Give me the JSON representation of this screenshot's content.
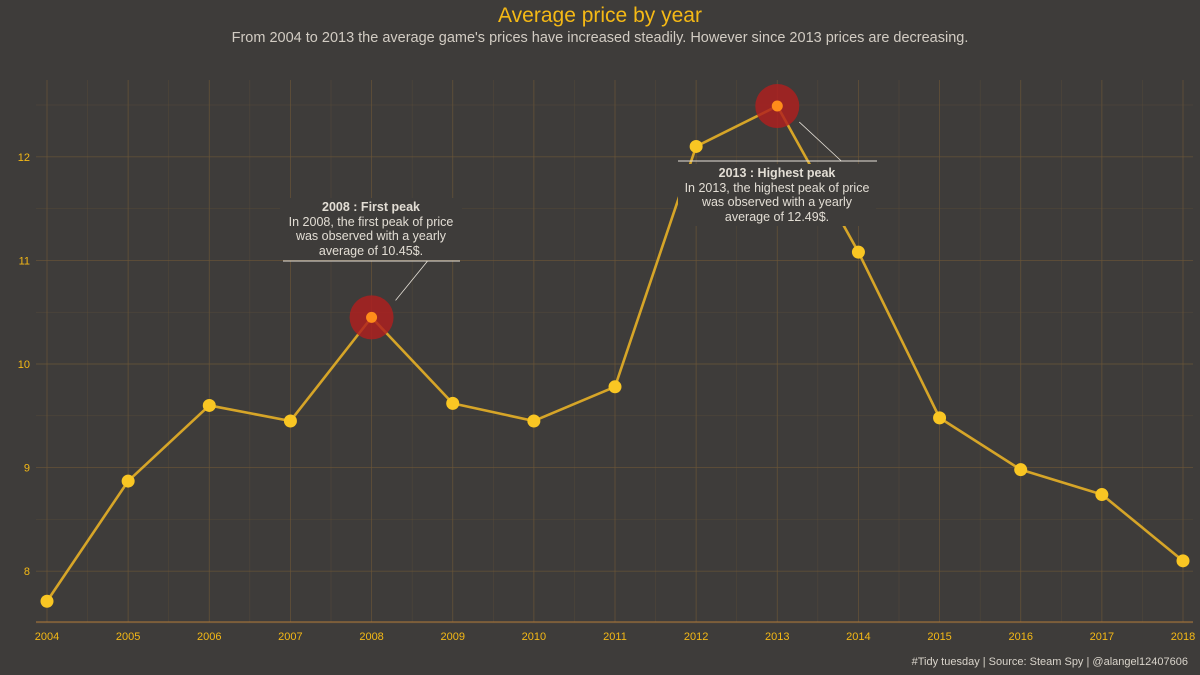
{
  "title": "Average price by year",
  "subtitle": "From 2004 to 2013 the average game's prices have increased steadily. However since 2013 prices are decreasing.",
  "caption": "#Tidy tuesday | Source: Steam Spy | @alangel12407606",
  "colors": {
    "background": "#3e3c3a",
    "line": "#d6a528",
    "point": "#f9c623",
    "highlight": "#ff8c1a",
    "halo": "#b01f1f",
    "grid": "#6b5638",
    "axis_text": "#f5b915"
  },
  "annotations": [
    {
      "year": 2008,
      "title": "2008 : First peak",
      "text": "In 2008, the first peak of price was observed with a yearly average of 10.45$."
    },
    {
      "year": 2013,
      "title": "2013 : Highest peak",
      "text": "In 2013, the highest peak of price was observed with a yearly average of 12.49$."
    }
  ],
  "chart_data": {
    "type": "line",
    "title": "Average price by year",
    "xlabel": "",
    "ylabel": "",
    "x": [
      2004,
      2005,
      2006,
      2007,
      2008,
      2009,
      2010,
      2011,
      2012,
      2013,
      2014,
      2015,
      2016,
      2017,
      2018
    ],
    "x_tick_labels": [
      "2004",
      "2005",
      "2006",
      "2007",
      "2008",
      "2009",
      "2010",
      "2011",
      "2012",
      "2013",
      "2014",
      "2015",
      "2016",
      "2017",
      "2018"
    ],
    "y": [
      7.71,
      8.87,
      9.6,
      9.45,
      10.45,
      9.62,
      9.45,
      9.78,
      12.1,
      12.49,
      11.08,
      9.48,
      8.98,
      8.74,
      8.1
    ],
    "y_ticks": [
      8,
      9,
      10,
      11,
      12
    ],
    "ylim": [
      7.5,
      12.5
    ],
    "xlim": [
      2004,
      2018
    ],
    "highlighted": [
      2008,
      2013
    ],
    "grid": true,
    "legend": "none"
  }
}
